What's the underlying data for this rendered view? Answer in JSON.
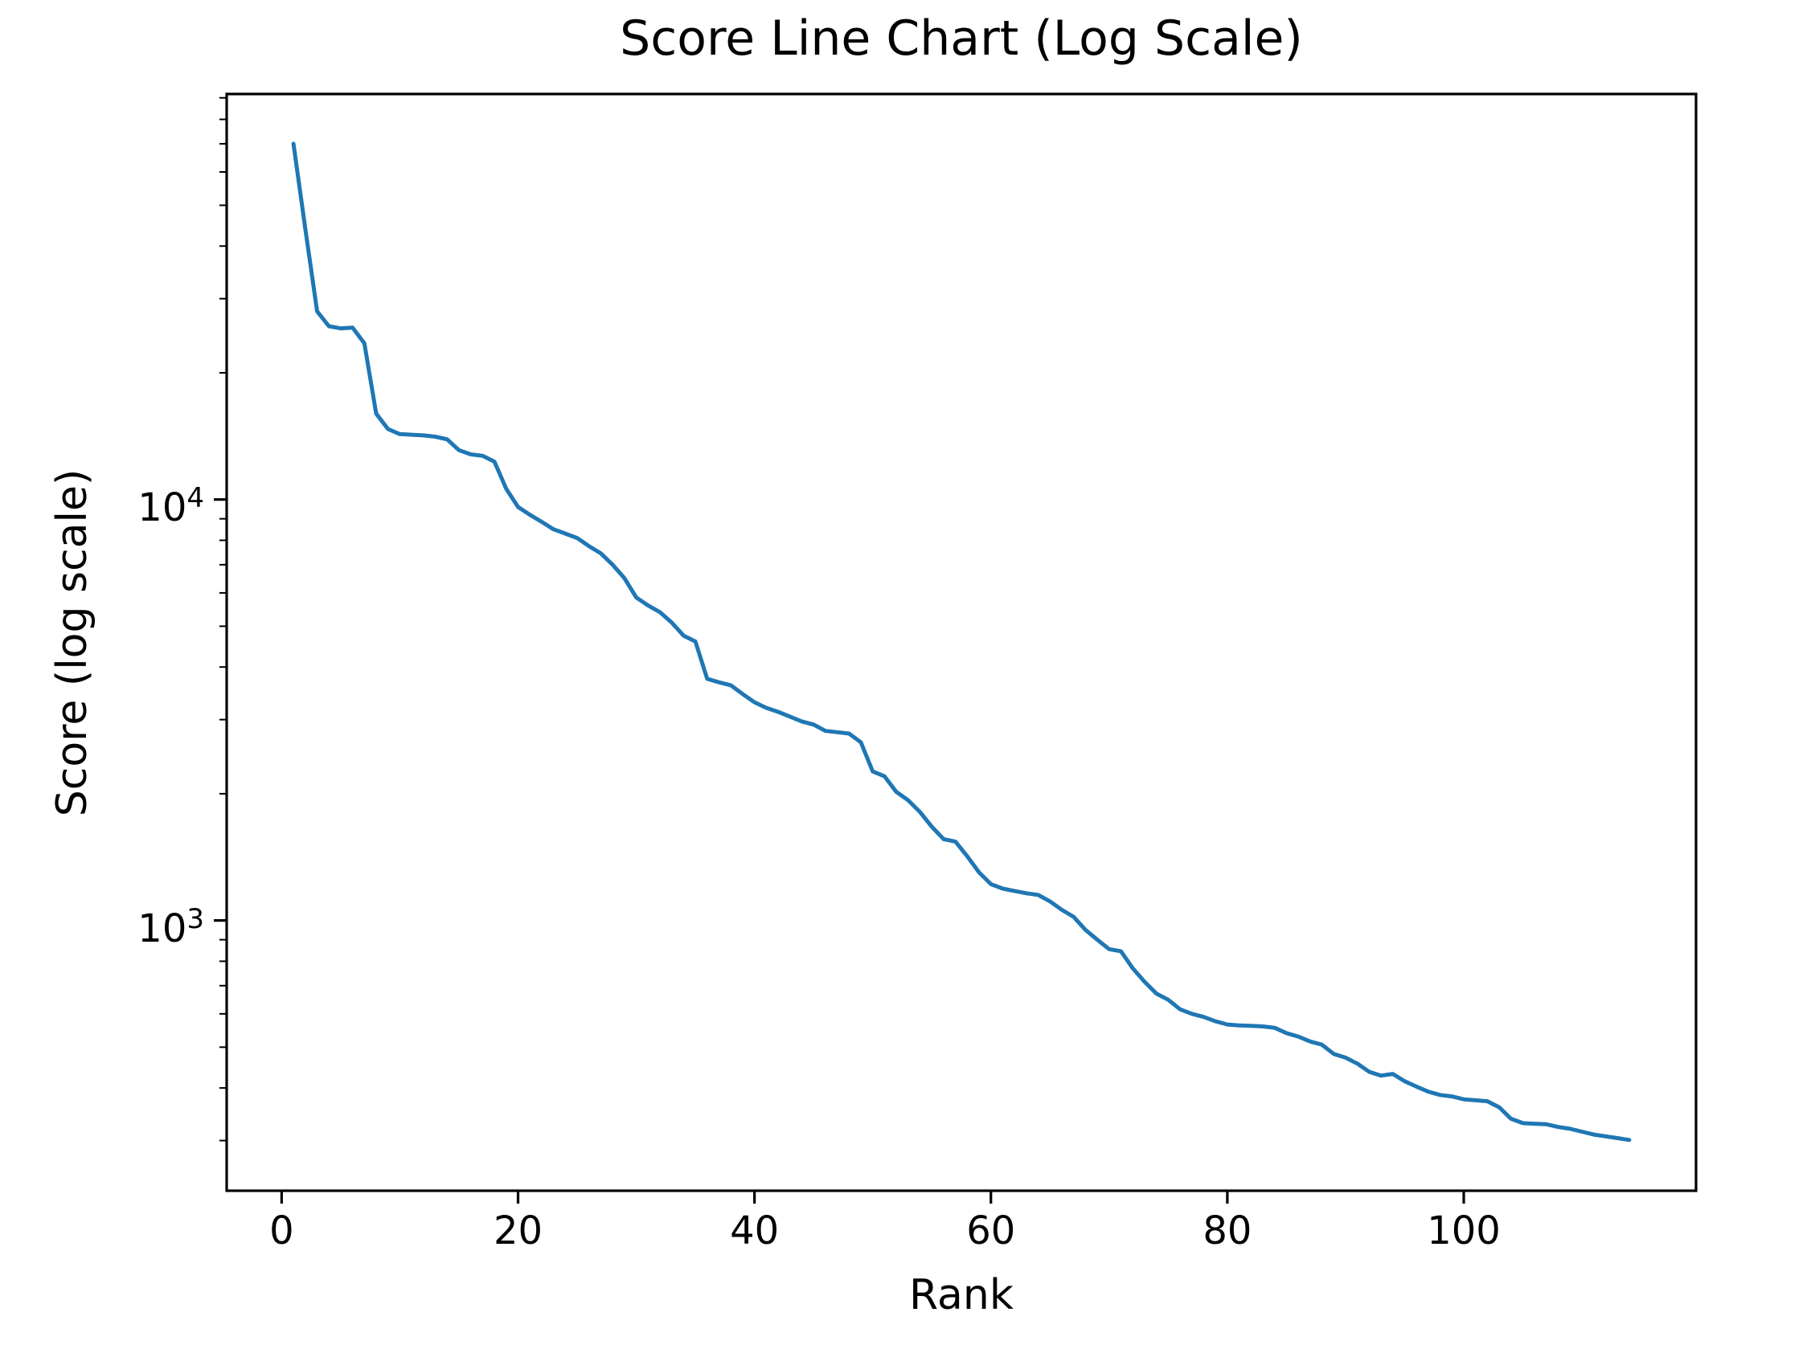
{
  "chart_data": {
    "type": "line",
    "title": "Score Line Chart (Log Scale)",
    "xlabel": "Rank",
    "ylabel": "Score (log scale)",
    "yscale": "log",
    "grid": false,
    "line_color": "#1f77b4",
    "axis_color": "#000000",
    "xlim": [
      -4.65,
      119.65
    ],
    "ylim": [
      228,
      91900
    ],
    "x_ticks": [
      {
        "value": 0,
        "label": "0"
      },
      {
        "value": 20,
        "label": "20"
      },
      {
        "value": 40,
        "label": "40"
      },
      {
        "value": 60,
        "label": "60"
      },
      {
        "value": 80,
        "label": "80"
      },
      {
        "value": 100,
        "label": "100"
      }
    ],
    "y_ticks": [
      {
        "value": 10000,
        "base": "10",
        "exponent": "4"
      },
      {
        "value": 1000,
        "base": "10",
        "exponent": "3"
      }
    ],
    "y_minor_ticks": [
      300,
      400,
      500,
      600,
      700,
      800,
      900,
      2000,
      3000,
      4000,
      5000,
      6000,
      7000,
      8000,
      9000,
      20000,
      30000,
      40000,
      50000,
      60000,
      70000,
      80000,
      90000
    ],
    "x": [
      1,
      2,
      3,
      4,
      5,
      6,
      7,
      8,
      9,
      10,
      11,
      12,
      13,
      14,
      15,
      16,
      17,
      18,
      19,
      20,
      21,
      22,
      23,
      24,
      25,
      26,
      27,
      28,
      29,
      30,
      31,
      32,
      33,
      34,
      35,
      36,
      37,
      38,
      39,
      40,
      41,
      42,
      43,
      44,
      45,
      46,
      47,
      48,
      49,
      50,
      51,
      52,
      53,
      54,
      55,
      56,
      57,
      58,
      59,
      60,
      61,
      62,
      63,
      64,
      65,
      66,
      67,
      68,
      69,
      70,
      71,
      72,
      73,
      74,
      75,
      76,
      77,
      78,
      79,
      80,
      81,
      82,
      83,
      84,
      85,
      86,
      87,
      88,
      89,
      90,
      91,
      92,
      93,
      94,
      95,
      96,
      97,
      98,
      99,
      100,
      101,
      102,
      103,
      104,
      105,
      106,
      107,
      108,
      109,
      110,
      111,
      112,
      113,
      114
    ],
    "y": [
      70000,
      44000,
      28000,
      25800,
      25500,
      25600,
      23500,
      16000,
      14700,
      14300,
      14250,
      14200,
      14100,
      13900,
      13100,
      12800,
      12700,
      12300,
      10600,
      9600,
      9200,
      8850,
      8500,
      8300,
      8100,
      7750,
      7450,
      7000,
      6500,
      5850,
      5600,
      5400,
      5100,
      4750,
      4600,
      3750,
      3680,
      3620,
      3450,
      3300,
      3200,
      3130,
      3050,
      2970,
      2920,
      2820,
      2800,
      2780,
      2650,
      2260,
      2200,
      2020,
      1930,
      1810,
      1670,
      1560,
      1540,
      1420,
      1300,
      1220,
      1190,
      1175,
      1160,
      1150,
      1110,
      1060,
      1020,
      950,
      900,
      855,
      845,
      770,
      715,
      670,
      648,
      615,
      600,
      590,
      576,
      566,
      563,
      562,
      560,
      556,
      540,
      530,
      516,
      507,
      482,
      472,
      457,
      437,
      428,
      432,
      415,
      403,
      392,
      385,
      382,
      376,
      374,
      372,
      360,
      338,
      330,
      329,
      328,
      323,
      320,
      315,
      310,
      307,
      304,
      301
    ]
  }
}
